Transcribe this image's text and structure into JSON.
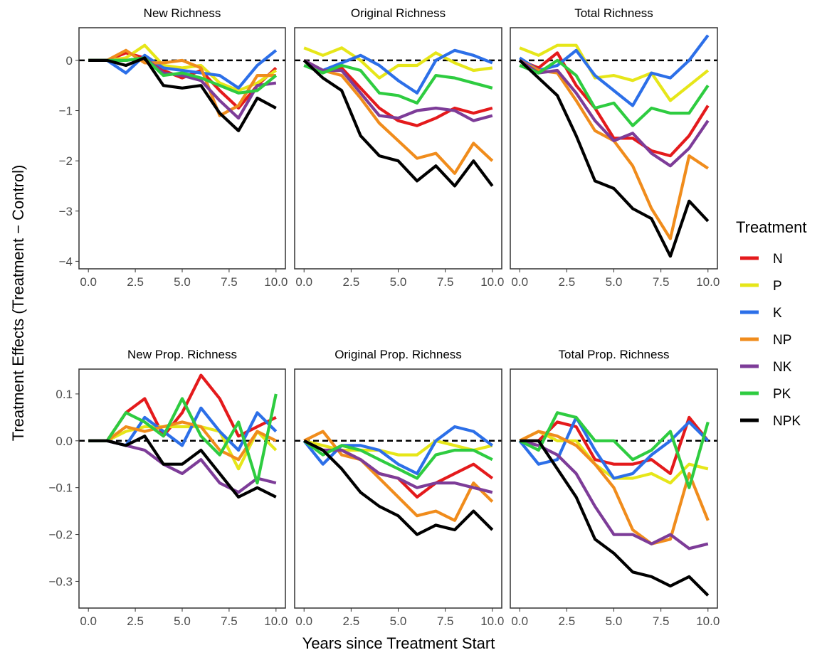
{
  "figure": {
    "ylabel": "Treatment Effects (Treatment − Control)",
    "xlabel": "Years since Treatment Start",
    "legend_title": "Treatment"
  },
  "legend": [
    {
      "name": "N",
      "color": "#e41a1c"
    },
    {
      "name": "P",
      "color": "#e6e619"
    },
    {
      "name": "K",
      "color": "#2c6fe8"
    },
    {
      "name": "NP",
      "color": "#f08c1c"
    },
    {
      "name": "NK",
      "color": "#7d3c98"
    },
    {
      "name": "PK",
      "color": "#2ecc40"
    },
    {
      "name": "NPK",
      "color": "#000000"
    }
  ],
  "chart_data": [
    {
      "type": "line",
      "title": "New Richness",
      "row": 0,
      "col": 0,
      "x": [
        0,
        1,
        2,
        3,
        4,
        5,
        6,
        7,
        8,
        9,
        10
      ],
      "xticks": [
        "0.0",
        "2.5",
        "5.0",
        "7.5",
        "10.0"
      ],
      "xlim": [
        -0.5,
        10.5
      ],
      "yticks": [
        0,
        -1,
        -2,
        -3,
        -4
      ],
      "ylim": [
        -4.15,
        0.65
      ],
      "series": [
        {
          "name": "N",
          "values": [
            0,
            0,
            0.15,
            0.05,
            -0.2,
            -0.35,
            -0.2,
            -0.6,
            -0.95,
            -0.5,
            -0.15
          ]
        },
        {
          "name": "P",
          "values": [
            0,
            0,
            0.05,
            0.3,
            -0.1,
            -0.15,
            -0.1,
            -0.45,
            -0.6,
            -0.45,
            -0.2
          ]
        },
        {
          "name": "K",
          "values": [
            0,
            0,
            -0.25,
            0.1,
            -0.15,
            -0.2,
            -0.25,
            -0.3,
            -0.55,
            -0.1,
            0.2
          ]
        },
        {
          "name": "NP",
          "values": [
            0,
            0,
            0.2,
            -0.05,
            -0.05,
            0,
            -0.15,
            -1.1,
            -0.9,
            -0.3,
            -0.3
          ]
        },
        {
          "name": "NK",
          "values": [
            0,
            0,
            0,
            0.05,
            -0.25,
            -0.3,
            -0.4,
            -0.8,
            -1.15,
            -0.5,
            -0.45
          ]
        },
        {
          "name": "PK",
          "values": [
            0,
            0,
            0,
            0.05,
            -0.3,
            -0.25,
            -0.35,
            -0.5,
            -0.65,
            -0.6,
            -0.3
          ]
        },
        {
          "name": "NPK",
          "values": [
            0,
            0,
            -0.1,
            0.05,
            -0.5,
            -0.55,
            -0.5,
            -1.05,
            -1.4,
            -0.75,
            -0.95
          ]
        }
      ]
    },
    {
      "type": "line",
      "title": "Original Richness",
      "row": 0,
      "col": 1,
      "x": [
        0,
        1,
        2,
        3,
        4,
        5,
        6,
        7,
        8,
        9,
        10
      ],
      "xticks": [
        "0.0",
        "2.5",
        "5.0",
        "7.5",
        "10.0"
      ],
      "xlim": [
        -0.5,
        10.5
      ],
      "yticks": [],
      "ylim": [
        -4.15,
        0.65
      ],
      "series": [
        {
          "name": "N",
          "values": [
            0,
            -0.2,
            -0.15,
            -0.55,
            -0.95,
            -1.2,
            -1.3,
            -1.15,
            -0.95,
            -1.05,
            -0.95
          ]
        },
        {
          "name": "P",
          "values": [
            0.25,
            0.1,
            0.25,
            0,
            -0.35,
            -0.1,
            -0.1,
            0.15,
            -0.05,
            -0.2,
            -0.15
          ]
        },
        {
          "name": "K",
          "values": [
            0,
            -0.2,
            -0.05,
            0.1,
            -0.1,
            -0.4,
            -0.65,
            0,
            0.2,
            0.1,
            -0.05
          ]
        },
        {
          "name": "NP",
          "values": [
            0,
            -0.2,
            -0.3,
            -0.75,
            -1.25,
            -1.6,
            -1.95,
            -1.85,
            -2.25,
            -1.65,
            -2
          ]
        },
        {
          "name": "NK",
          "values": [
            0,
            -0.2,
            -0.2,
            -0.65,
            -1.1,
            -1.15,
            -1,
            -0.95,
            -1,
            -1.2,
            -1.1
          ]
        },
        {
          "name": "PK",
          "values": [
            -0.1,
            -0.25,
            -0.1,
            -0.2,
            -0.65,
            -0.7,
            -0.85,
            -0.3,
            -0.35,
            -0.45,
            -0.55
          ]
        },
        {
          "name": "NPK",
          "values": [
            0,
            -0.35,
            -0.6,
            -1.5,
            -1.9,
            -2,
            -2.4,
            -2.1,
            -2.5,
            -2,
            -2.5
          ]
        }
      ]
    },
    {
      "type": "line",
      "title": "Total Richness",
      "row": 0,
      "col": 2,
      "x": [
        0,
        1,
        2,
        3,
        4,
        5,
        6,
        7,
        8,
        9,
        10
      ],
      "xticks": [
        "0.0",
        "2.5",
        "5.0",
        "7.5",
        "10.0"
      ],
      "xlim": [
        -0.5,
        10.5
      ],
      "yticks": [],
      "ylim": [
        -4.15,
        0.65
      ],
      "series": [
        {
          "name": "N",
          "values": [
            0,
            -0.15,
            0.15,
            -0.5,
            -0.95,
            -1.55,
            -1.55,
            -1.8,
            -1.9,
            -1.5,
            -0.9
          ]
        },
        {
          "name": "P",
          "values": [
            0.25,
            0.1,
            0.3,
            0.3,
            -0.35,
            -0.3,
            -0.4,
            -0.25,
            -0.8,
            -0.5,
            -0.2
          ]
        },
        {
          "name": "K",
          "values": [
            0.05,
            -0.2,
            -0.1,
            0.2,
            -0.3,
            -0.6,
            -0.9,
            -0.25,
            -0.35,
            0,
            0.5
          ]
        },
        {
          "name": "NP",
          "values": [
            0,
            -0.2,
            -0.25,
            -0.8,
            -1.4,
            -1.6,
            -2.1,
            -2.95,
            -3.55,
            -1.9,
            -2.15
          ]
        },
        {
          "name": "NK",
          "values": [
            0,
            -0.25,
            -0.2,
            -0.65,
            -1.2,
            -1.6,
            -1.45,
            -1.85,
            -2.1,
            -1.75,
            -1.2
          ]
        },
        {
          "name": "PK",
          "values": [
            -0.1,
            -0.25,
            0,
            -0.3,
            -0.95,
            -0.85,
            -1.3,
            -0.95,
            -1.05,
            -1.05,
            -0.5
          ]
        },
        {
          "name": "NPK",
          "values": [
            0,
            -0.35,
            -0.7,
            -1.5,
            -2.4,
            -2.55,
            -2.95,
            -3.15,
            -3.9,
            -2.8,
            -3.2
          ]
        }
      ]
    },
    {
      "type": "line",
      "title": "New Prop. Richness",
      "row": 1,
      "col": 0,
      "x": [
        0,
        1,
        2,
        3,
        4,
        5,
        6,
        7,
        8,
        9,
        10
      ],
      "xticks": [
        "0.0",
        "2.5",
        "5.0",
        "7.5",
        "10.0"
      ],
      "xlim": [
        -0.5,
        10.5
      ],
      "yticks": [
        0.1,
        0.0,
        -0.1,
        -0.2,
        -0.3
      ],
      "ylim": [
        -0.357,
        0.153
      ],
      "series": [
        {
          "name": "N",
          "values": [
            0,
            0,
            0.06,
            0.09,
            0.01,
            0.06,
            0.14,
            0.09,
            0.01,
            0.03,
            0.05
          ]
        },
        {
          "name": "P",
          "values": [
            0,
            0,
            0.02,
            0.03,
            0.03,
            0.03,
            0.03,
            0.02,
            -0.06,
            0.02,
            -0.02
          ]
        },
        {
          "name": "K",
          "values": [
            0,
            0,
            -0.01,
            0.05,
            0.02,
            -0.01,
            0.07,
            0.02,
            -0.02,
            0.06,
            0.02
          ]
        },
        {
          "name": "NP",
          "values": [
            0,
            0,
            0.03,
            0.02,
            0.03,
            0.04,
            0.03,
            -0.02,
            -0.04,
            0.02,
            0
          ]
        },
        {
          "name": "NK",
          "values": [
            0,
            0,
            -0.01,
            -0.02,
            -0.05,
            -0.07,
            -0.04,
            -0.09,
            -0.11,
            -0.08,
            -0.09
          ]
        },
        {
          "name": "PK",
          "values": [
            0,
            0,
            0.06,
            0.04,
            0.01,
            0.09,
            0.01,
            -0.03,
            0.04,
            -0.09,
            0.1
          ]
        },
        {
          "name": "NPK",
          "values": [
            0,
            0,
            -0.01,
            0.01,
            -0.05,
            -0.05,
            -0.02,
            -0.07,
            -0.12,
            -0.1,
            -0.12
          ]
        }
      ]
    },
    {
      "type": "line",
      "title": "Original Prop. Richness",
      "row": 1,
      "col": 1,
      "x": [
        0,
        1,
        2,
        3,
        4,
        5,
        6,
        7,
        8,
        9,
        10
      ],
      "xticks": [
        "0.0",
        "2.5",
        "5.0",
        "7.5",
        "10.0"
      ],
      "xlim": [
        -0.5,
        10.5
      ],
      "yticks": [],
      "ylim": [
        -0.357,
        0.153
      ],
      "series": [
        {
          "name": "N",
          "values": [
            0,
            -0.02,
            -0.02,
            -0.04,
            -0.07,
            -0.08,
            -0.12,
            -0.09,
            -0.07,
            -0.05,
            -0.08
          ]
        },
        {
          "name": "P",
          "values": [
            0,
            -0.01,
            -0.02,
            -0.02,
            -0.02,
            -0.03,
            -0.03,
            0,
            -0.01,
            -0.02,
            -0.01
          ]
        },
        {
          "name": "K",
          "values": [
            0,
            -0.05,
            -0.01,
            -0.01,
            -0.02,
            -0.05,
            -0.07,
            0,
            0.03,
            0.02,
            -0.01
          ]
        },
        {
          "name": "NP",
          "values": [
            0,
            0.02,
            -0.03,
            -0.04,
            -0.08,
            -0.12,
            -0.16,
            -0.15,
            -0.17,
            -0.09,
            -0.13
          ]
        },
        {
          "name": "NK",
          "values": [
            0,
            -0.02,
            -0.02,
            -0.04,
            -0.07,
            -0.08,
            -0.1,
            -0.09,
            -0.09,
            -0.1,
            -0.11
          ]
        },
        {
          "name": "PK",
          "values": [
            0,
            -0.03,
            -0.01,
            -0.02,
            -0.04,
            -0.06,
            -0.08,
            -0.03,
            -0.02,
            -0.02,
            -0.04
          ]
        },
        {
          "name": "NPK",
          "values": [
            0,
            -0.02,
            -0.06,
            -0.11,
            -0.14,
            -0.16,
            -0.2,
            -0.18,
            -0.19,
            -0.15,
            -0.19
          ]
        }
      ]
    },
    {
      "type": "line",
      "title": "Total Prop. Richness",
      "row": 1,
      "col": 2,
      "x": [
        0,
        1,
        2,
        3,
        4,
        5,
        6,
        7,
        8,
        9,
        10
      ],
      "xticks": [
        "0.0",
        "2.5",
        "5.0",
        "7.5",
        "10.0"
      ],
      "xlim": [
        -0.5,
        10.5
      ],
      "yticks": [],
      "ylim": [
        -0.357,
        0.153
      ],
      "series": [
        {
          "name": "N",
          "values": [
            0,
            0,
            0.04,
            0.03,
            -0.04,
            -0.05,
            -0.05,
            -0.04,
            -0.07,
            0.05,
            0
          ]
        },
        {
          "name": "P",
          "values": [
            0,
            0.02,
            0,
            0,
            -0.05,
            -0.08,
            -0.08,
            -0.07,
            -0.09,
            -0.05,
            -0.06
          ]
        },
        {
          "name": "K",
          "values": [
            0,
            -0.05,
            -0.04,
            0.05,
            -0.02,
            -0.08,
            -0.07,
            -0.03,
            0,
            0.04,
            0
          ]
        },
        {
          "name": "NP",
          "values": [
            0,
            0.02,
            0.01,
            -0.01,
            -0.05,
            -0.1,
            -0.19,
            -0.22,
            -0.21,
            -0.07,
            -0.17
          ]
        },
        {
          "name": "NK",
          "values": [
            0,
            -0.01,
            -0.03,
            -0.07,
            -0.14,
            -0.2,
            -0.2,
            -0.22,
            -0.2,
            -0.23,
            -0.22
          ]
        },
        {
          "name": "PK",
          "values": [
            0,
            -0.02,
            0.06,
            0.05,
            0,
            0,
            -0.04,
            -0.02,
            0.02,
            -0.1,
            0.04
          ]
        },
        {
          "name": "NPK",
          "values": [
            0,
            0,
            -0.06,
            -0.12,
            -0.21,
            -0.24,
            -0.28,
            -0.29,
            -0.31,
            -0.29,
            -0.33
          ]
        }
      ]
    }
  ]
}
